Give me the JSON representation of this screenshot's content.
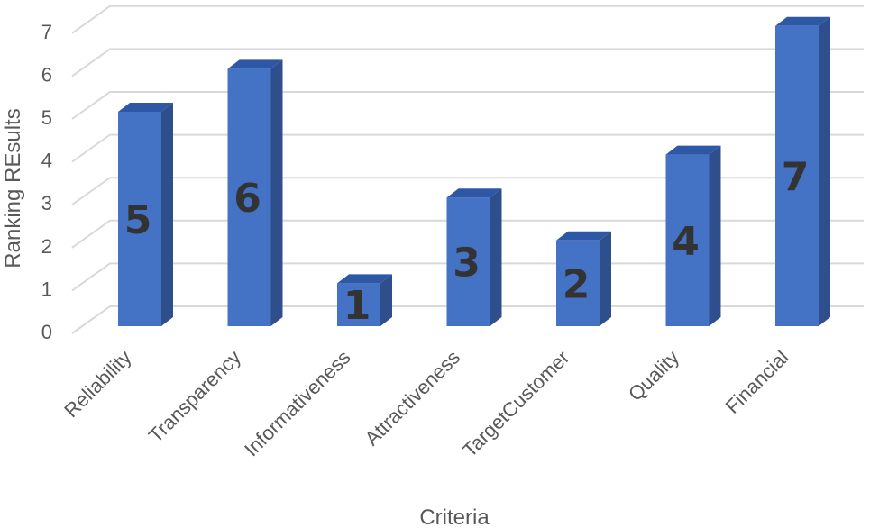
{
  "chart_data": {
    "type": "bar",
    "style": "3d-column",
    "categories": [
      "Reliability",
      "Transparency",
      "Informativeness",
      "Attractiveness",
      "TargetCustomer",
      "Quality",
      "Financial"
    ],
    "values": [
      5,
      6,
      1,
      3,
      2,
      4,
      7
    ],
    "data_labels": [
      "5",
      "6",
      "1",
      "3",
      "2",
      "4",
      "7"
    ],
    "xlabel": "Criteria",
    "ylabel": "Ranking REsults",
    "ylim": [
      0,
      7
    ],
    "yticks": [
      "0",
      "1",
      "2",
      "3",
      "4",
      "5",
      "6",
      "7"
    ],
    "grid": true,
    "legend": "none",
    "colors": {
      "bar_front": "#4472C4",
      "bar_side": "#2F4F8C",
      "bar_top": "#2E58A6",
      "grid": "#D9D9D9",
      "text": "#595959",
      "data_label": "#333333"
    }
  }
}
